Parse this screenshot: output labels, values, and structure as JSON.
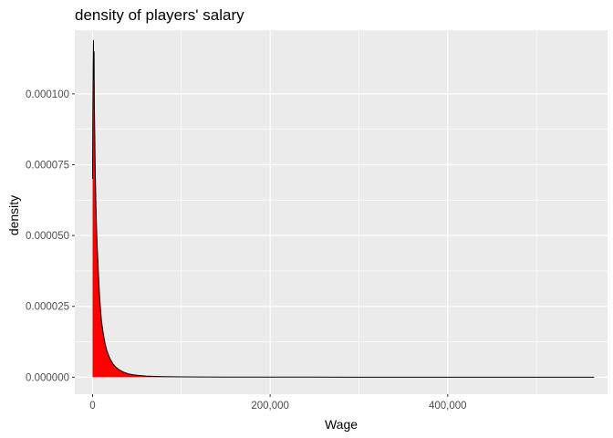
{
  "chart_data": {
    "type": "area",
    "title": "density of players' salary",
    "xlabel": "Wage",
    "ylabel": "density",
    "xlim": [
      -20000,
      580000
    ],
    "ylim": [
      -6e-06,
      0.0001225
    ],
    "x_ticks": [
      0,
      200000,
      400000
    ],
    "x_tick_labels": [
      "0",
      "200,000",
      "400,000"
    ],
    "y_ticks": [
      0,
      2.5e-05,
      5e-05,
      7.5e-05,
      0.0001
    ],
    "y_tick_labels": [
      "0.000000",
      "0.000025",
      "0.000050",
      "0.000075",
      "0.000100"
    ],
    "grid": true,
    "background": "#ebebeb",
    "grid_color": "#ffffff",
    "fill_color": "#ff0000",
    "line_color": "#000000",
    "series": [
      {
        "x": [
          0,
          300,
          700,
          1000,
          1300,
          1700,
          2000,
          2500,
          3000,
          4000,
          5000,
          6000,
          7000,
          8000,
          9000,
          10000,
          12000,
          14000,
          16000,
          18000,
          20000,
          23000,
          26000,
          30000,
          35000,
          40000,
          45000,
          50000,
          60000,
          70000,
          80000,
          90000,
          100000,
          120000,
          150000,
          200000,
          250000,
          300000,
          400000,
          500000,
          565000
        ],
        "y": [
          7e-05,
          9.3e-05,
          0.00011,
          0.000119,
          0.000105,
          0.000115,
          9.6e-05,
          8.6e-05,
          7.3e-05,
          5.8e-05,
          4.8e-05,
          4.1e-05,
          3.4e-05,
          2.8e-05,
          2.4e-05,
          2e-05,
          1.55e-05,
          1.2e-05,
          9.5e-06,
          7.8e-06,
          6.3e-06,
          4.7e-06,
          3.6e-06,
          2.6e-06,
          1.8e-06,
          1.2e-06,
          9e-07,
          7e-07,
          4e-07,
          3e-07,
          2e-07,
          1.5e-07,
          1e-07,
          7e-08,
          5e-08,
          3e-08,
          2e-08,
          1e-08,
          1e-08,
          5e-09,
          5e-09
        ]
      }
    ]
  }
}
